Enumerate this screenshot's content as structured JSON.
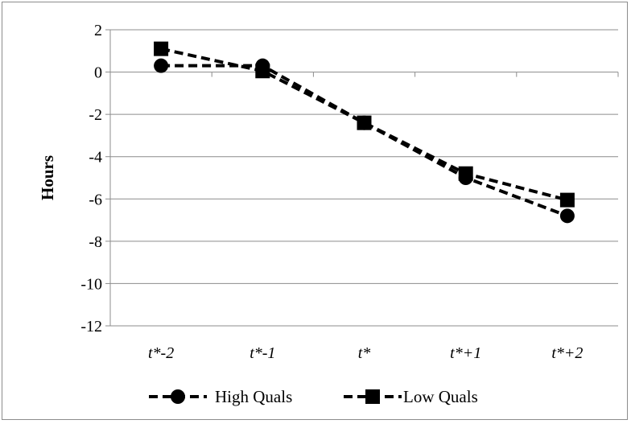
{
  "chart_data": {
    "type": "line",
    "title": "",
    "xlabel": "",
    "ylabel": "Hours",
    "categories": [
      "t*-2",
      "t*-1",
      "t*",
      "t*+1",
      "t*+2"
    ],
    "ylim": [
      -12,
      2
    ],
    "yticks": [
      2,
      0,
      -2,
      -4,
      -6,
      -8,
      -10,
      -12
    ],
    "grid": "horizontal",
    "legend_position": "bottom",
    "series": [
      {
        "name": "High Quals",
        "marker": "circle",
        "line_style": "dashed",
        "color": "#000000",
        "values": [
          0.3,
          0.3,
          -2.4,
          -5.0,
          -6.8
        ]
      },
      {
        "name": "Low Quals",
        "marker": "square",
        "line_style": "dashed",
        "color": "#000000",
        "values": [
          1.1,
          0.05,
          -2.4,
          -4.8,
          -6.05
        ]
      }
    ]
  }
}
